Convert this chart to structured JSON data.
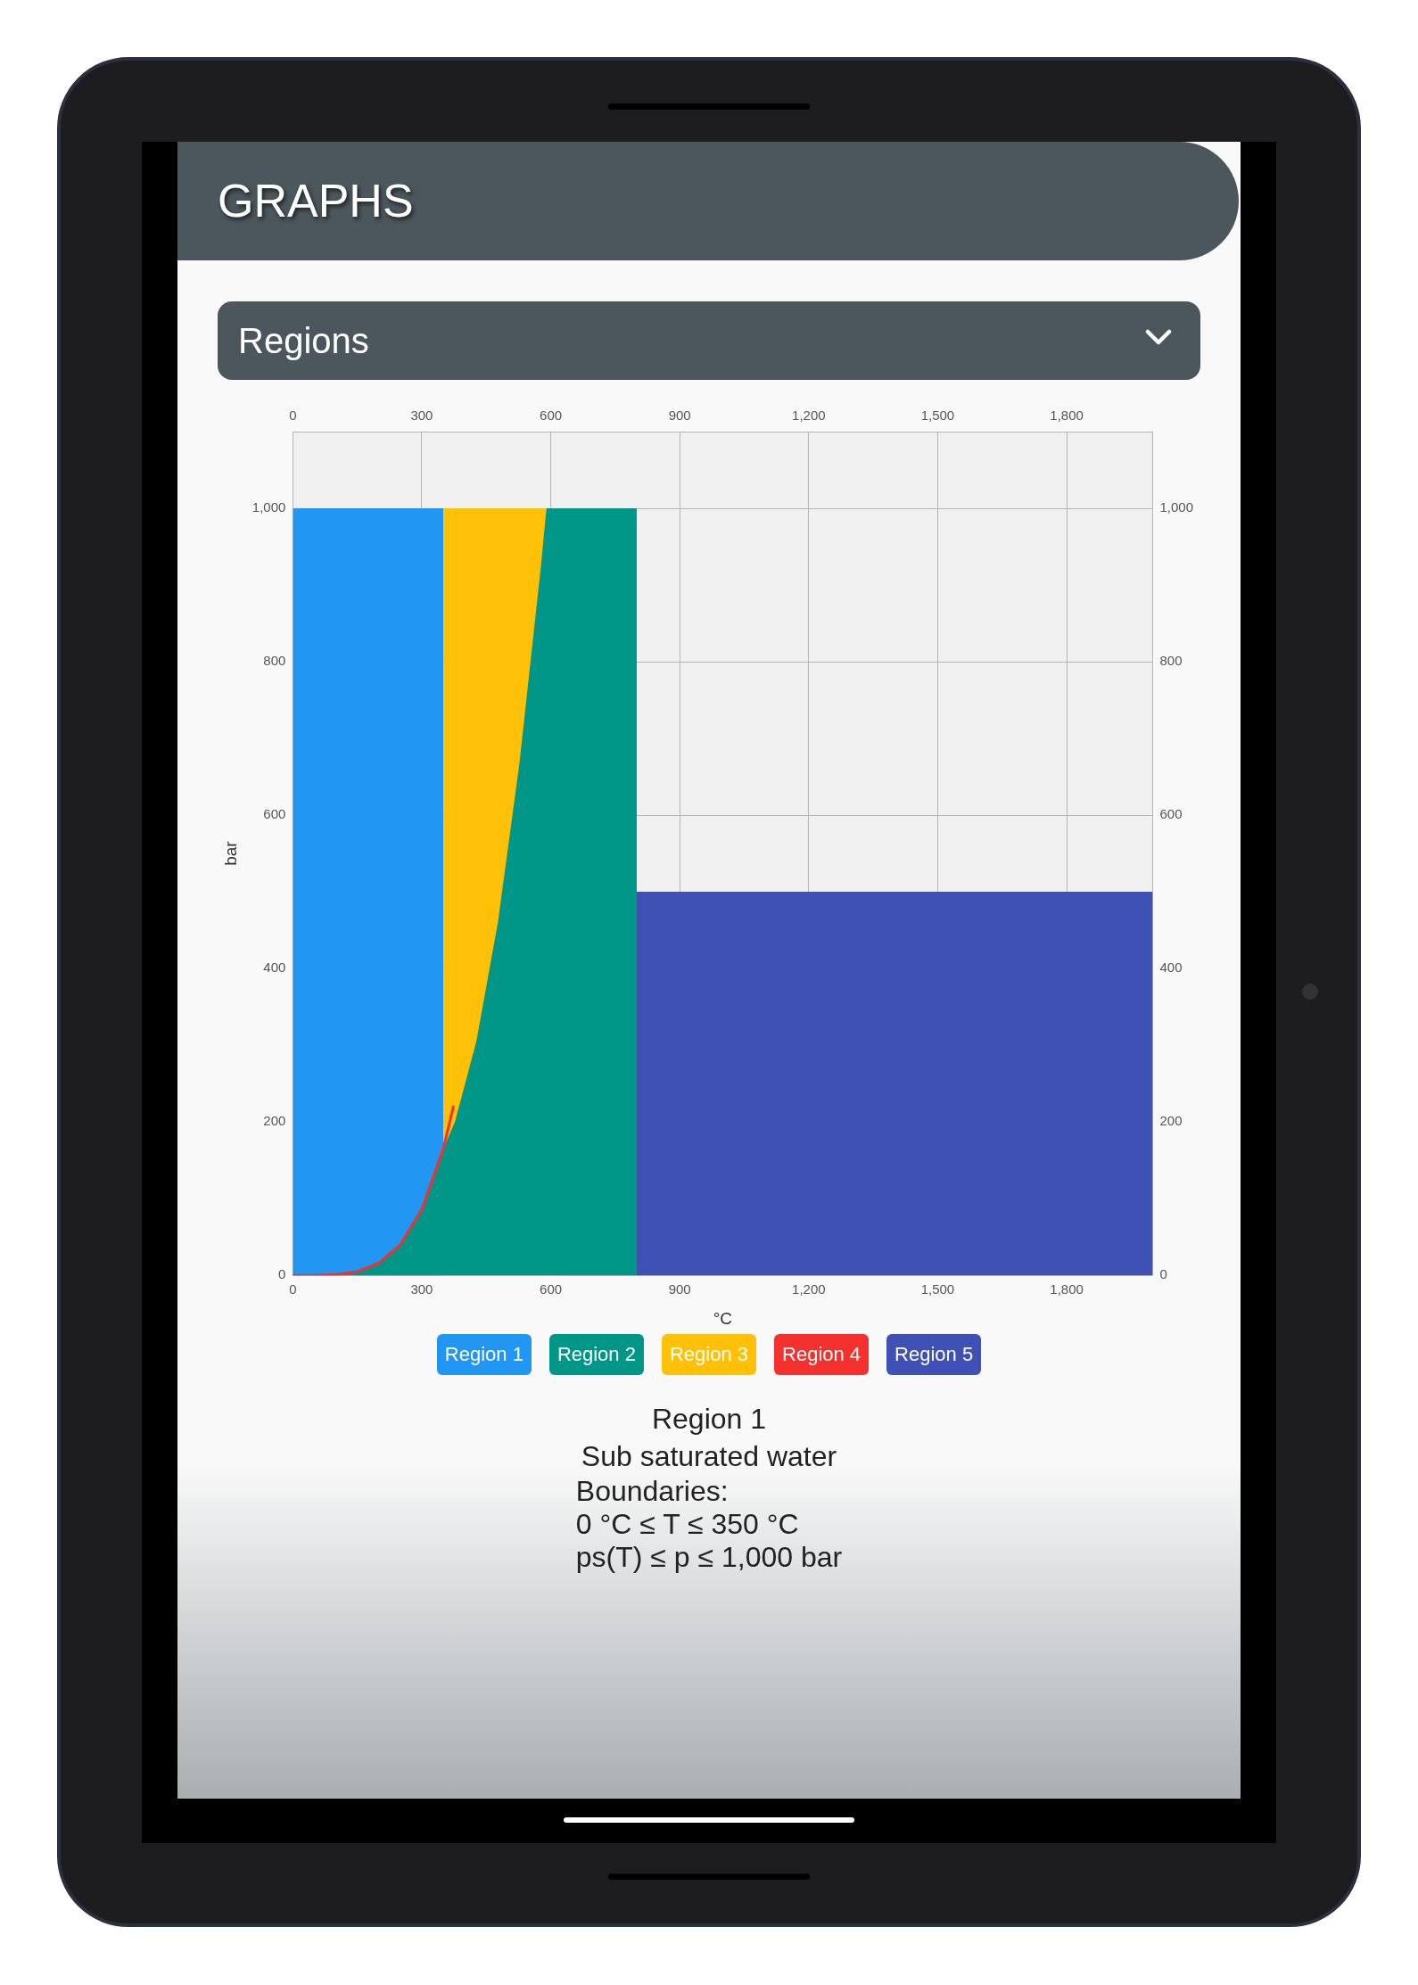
{
  "chart_data": {
    "type": "area",
    "title": "GRAPHS",
    "subtitle": "Regions",
    "xlabel": "°C",
    "ylabel": "bar",
    "xlim": [
      0,
      2000
    ],
    "xticks": [
      0,
      300,
      600,
      900,
      {
        "value": 1200,
        "label": "1,200"
      },
      {
        "value": 1500,
        "label": "1,500"
      },
      {
        "value": 1800,
        "label": "1,800"
      }
    ],
    "x2lim": [
      0,
      2000
    ],
    "x2ticks": [
      0,
      300,
      600,
      900,
      {
        "value": 1200,
        "label": "1,200"
      },
      {
        "value": 1500,
        "label": "1,500"
      },
      {
        "value": 1800,
        "label": "1,800"
      }
    ],
    "ylim": [
      0,
      1100
    ],
    "yticks": [
      0,
      200,
      400,
      600,
      800,
      {
        "value": 1000,
        "label": "1,000"
      }
    ],
    "y2lim": [
      0,
      1100
    ],
    "y2ticks": [
      0,
      200,
      400,
      600,
      800,
      {
        "value": 1000,
        "label": "1,000"
      }
    ],
    "grid": true,
    "legend": "bottom",
    "marker": "none",
    "series": [
      {
        "name": "Region 1",
        "color": "#2196f3",
        "x": [
          0,
          350
        ],
        "values": [
          1000,
          1000
        ]
      },
      {
        "name": "Region 2",
        "color": "#009688",
        "x": [
          0,
          50,
          100,
          150,
          200,
          250,
          300,
          350,
          377,
          427,
          477,
          527,
          577,
          590,
          800
        ],
        "values": [
          0,
          0,
          1,
          5,
          16,
          40,
          86,
          165,
          200,
          305,
          460,
          667,
          924,
          1000,
          1000
        ]
      },
      {
        "name": "Region 3",
        "color": "#ffc107",
        "x": [
          350,
          590
        ],
        "values": [
          1000,
          1000
        ]
      },
      {
        "name": "Region 4",
        "color": "#f4312f",
        "type": "line",
        "x": [
          0,
          50,
          100,
          150,
          200,
          250,
          300,
          350,
          374
        ],
        "values": [
          0,
          0,
          1,
          5,
          16,
          40,
          86,
          165,
          221
        ]
      },
      {
        "name": "Region 5",
        "color": "#3f51b5",
        "x": [
          800,
          2000
        ],
        "values": [
          500,
          500
        ]
      }
    ],
    "annotations": [
      "Region 1",
      "Sub saturated water",
      "Boundaries:",
      "0 °C  ≤ T ≤  350 °C",
      "ps(T)  ≤ p ≤  1,000 bar"
    ]
  }
}
